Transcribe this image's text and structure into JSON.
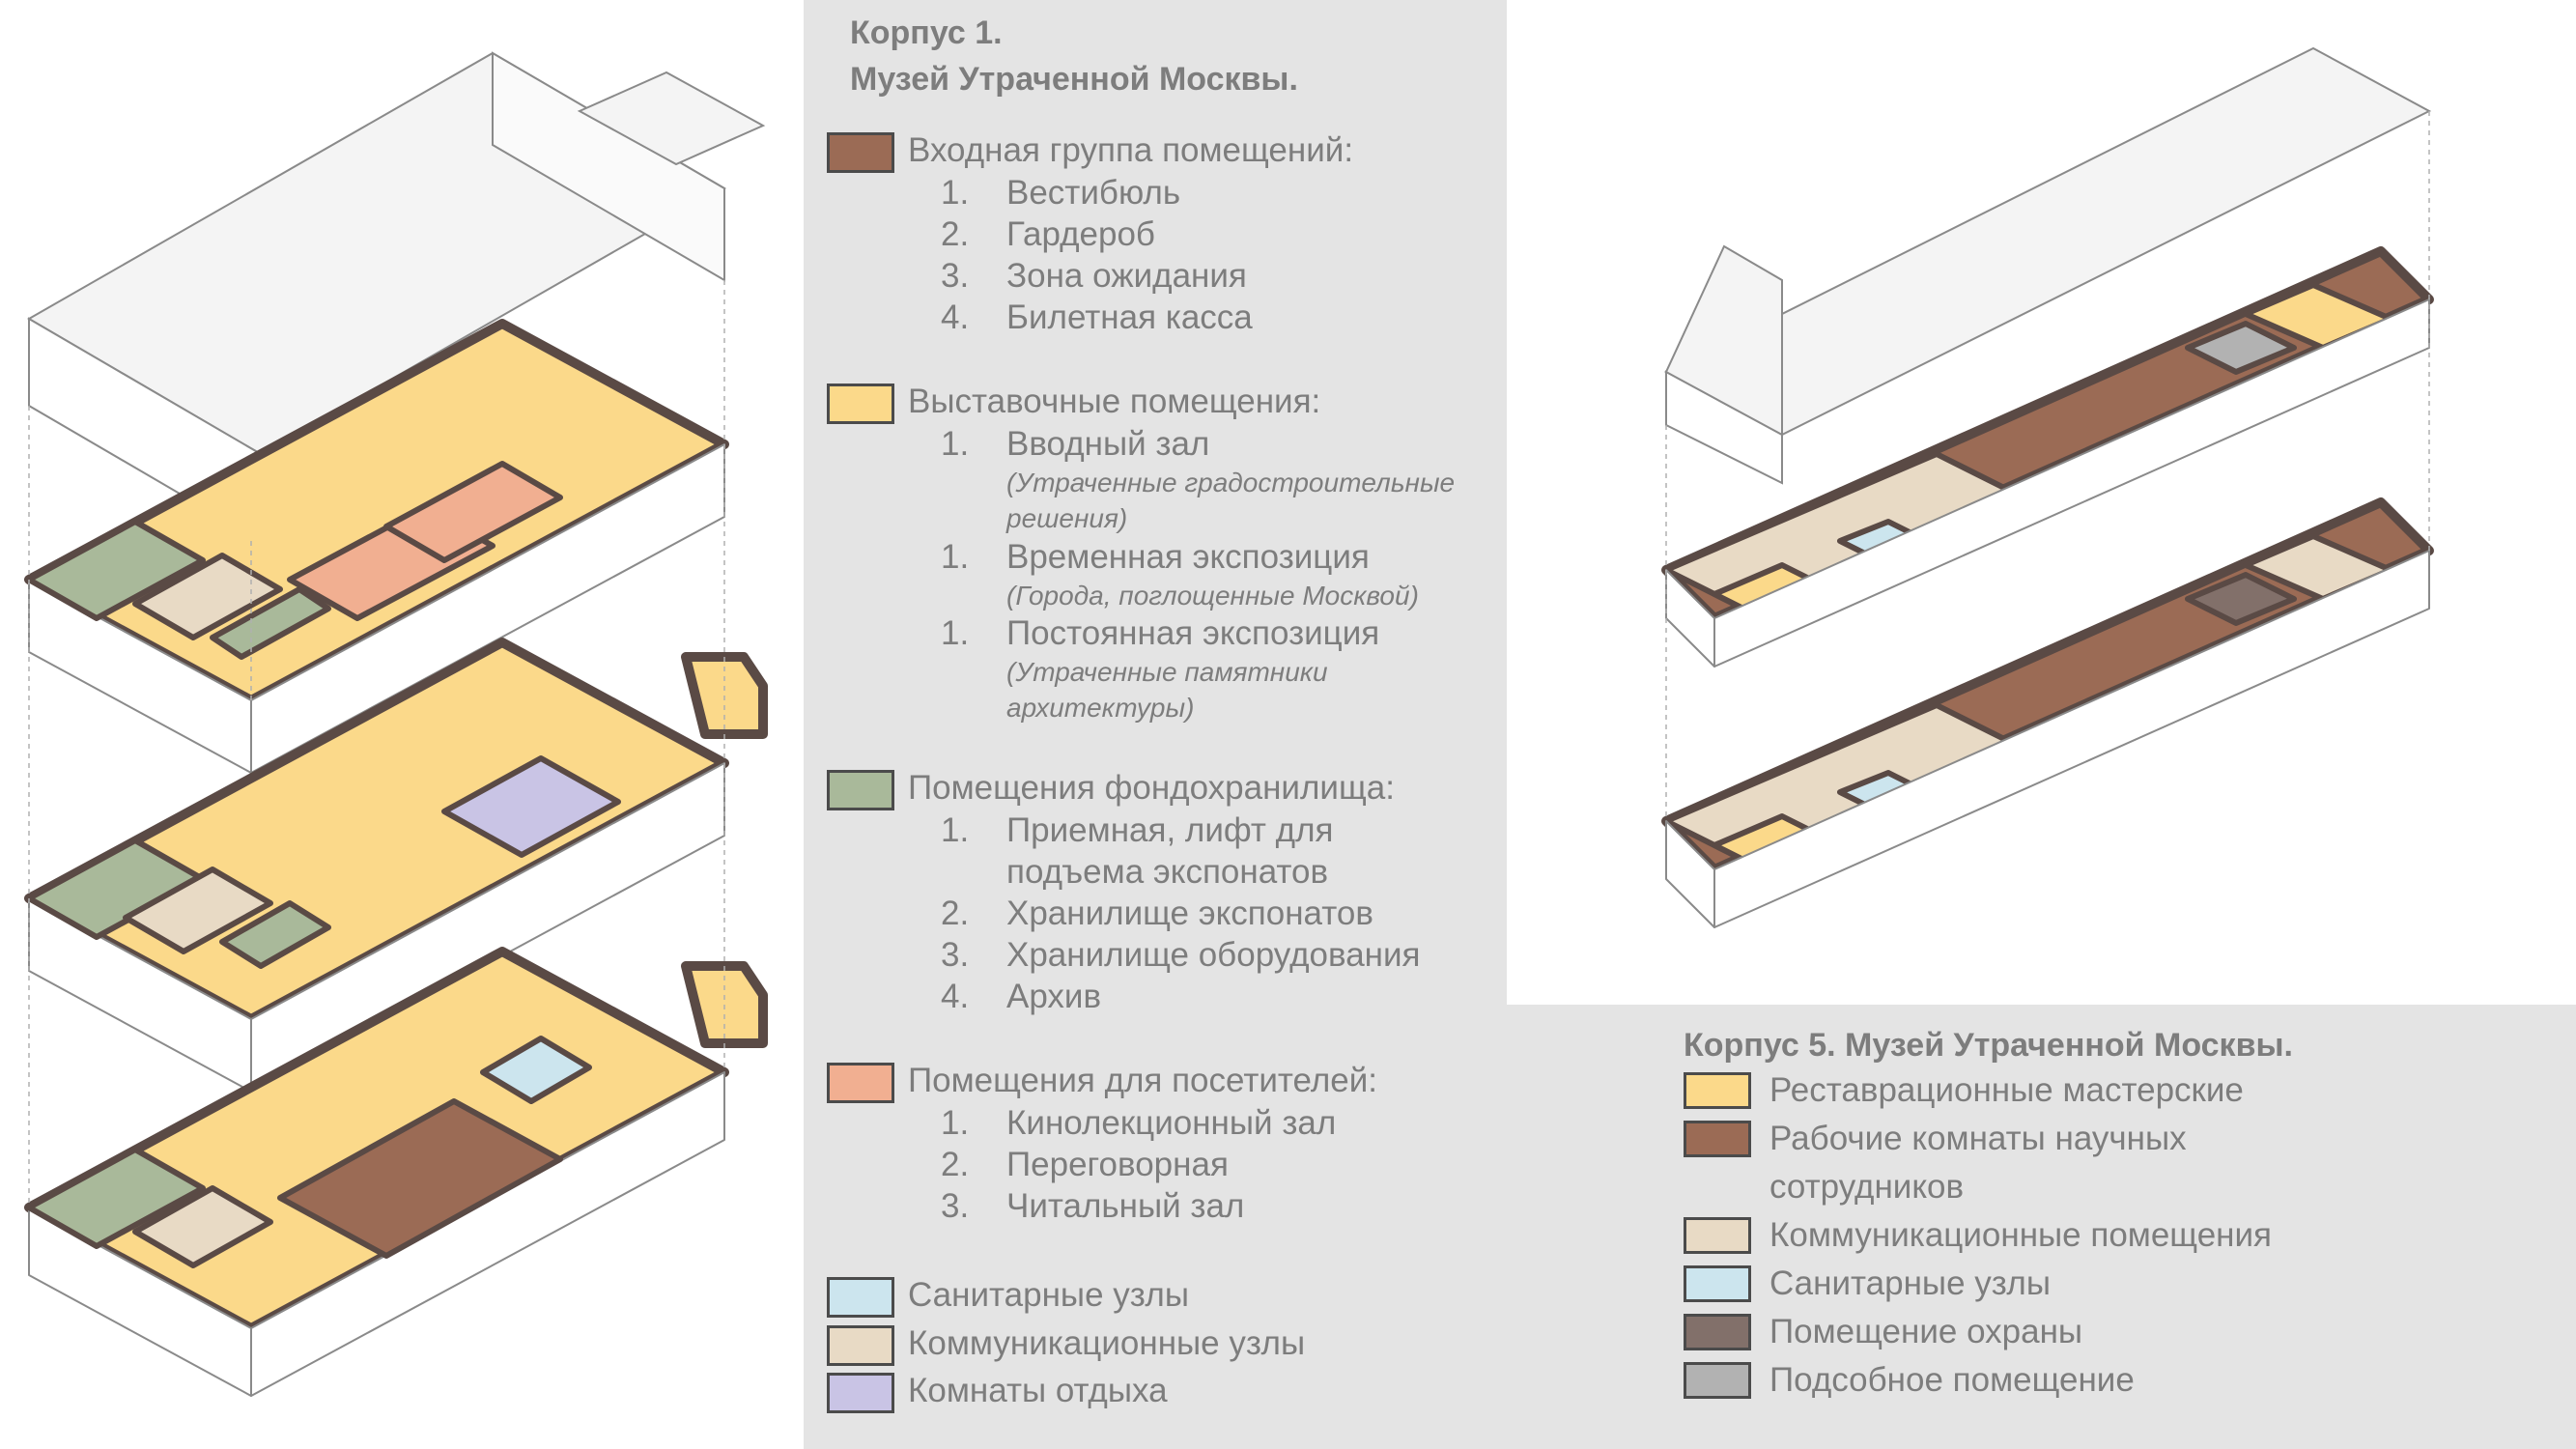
{
  "colors": {
    "entrance": "#9b6b55",
    "exhibition": "#fbd98a",
    "storage": "#a9b99a",
    "visitors": "#f1af91",
    "sanitary": "#cce5ee",
    "communication": "#e8dac5",
    "rest": "#c9c4e5",
    "guard": "#82706a",
    "utility": "#b2b2b2",
    "wall": "#5a4a45",
    "panel": "#e4e4e4"
  },
  "legend1": {
    "title_line1": "Корпус 1.",
    "title_line2": "Музей Утраченной Москвы.",
    "groups": [
      {
        "label": "Входная группа помещений:",
        "items": [
          {
            "num": "1.",
            "text": "Вестибюль"
          },
          {
            "num": "2.",
            "text": "Гардероб"
          },
          {
            "num": "3.",
            "text": "Зона ожидания"
          },
          {
            "num": "4.",
            "text": "Билетная касса"
          }
        ]
      },
      {
        "label": "Выставочные помещения:",
        "items": [
          {
            "num": "1.",
            "text": "Вводный зал",
            "note1": "(Утраченные градостроительные",
            "note2": "решения)"
          },
          {
            "num": "1.",
            "text": "Временная экспозиция",
            "note1": "(Города, поглощенные Москвой)"
          },
          {
            "num": "1.",
            "text": "Постоянная экспозиция",
            "note1": "(Утраченные памятники",
            "note2": "архитектуры)"
          }
        ]
      },
      {
        "label": "Помещения фондохранилища:",
        "items": [
          {
            "num": "1.",
            "text": "Приемная, лифт для",
            "text2": "подъема экспонатов"
          },
          {
            "num": "2.",
            "text": "Хранилище экспонатов"
          },
          {
            "num": "3.",
            "text": "Хранилище оборудования"
          },
          {
            "num": "4.",
            "text": "Архив"
          }
        ]
      },
      {
        "label": "Помещения для посетителей:",
        "items": [
          {
            "num": "1.",
            "text": "Кинолекционный зал"
          },
          {
            "num": "2.",
            "text": "Переговорная"
          },
          {
            "num": "3.",
            "text": "Читальный зал"
          }
        ]
      }
    ],
    "simple": [
      "Санитарные узлы",
      "Коммуникационные узлы",
      "Комнаты отдыха"
    ]
  },
  "legend2": {
    "title": "Корпус 5.  Музей Утраченной Москвы.",
    "items": [
      {
        "label": "Реставрационные мастерские"
      },
      {
        "label": "Рабочие комнаты научных",
        "label2": "сотрудников"
      },
      {
        "label": "Коммуникационные помещения"
      },
      {
        "label": "Санитарные узлы"
      },
      {
        "label": "Помещение охраны"
      },
      {
        "label": "Подсобное помещение"
      }
    ]
  }
}
